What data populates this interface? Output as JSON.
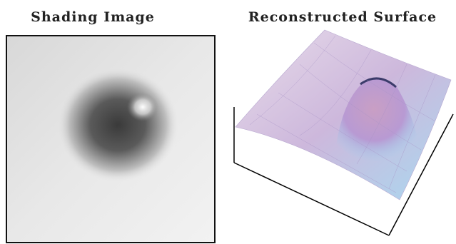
{
  "panels": [
    {
      "title": "Shading Image"
    },
    {
      "title": "Reconstructed Surface"
    }
  ]
}
